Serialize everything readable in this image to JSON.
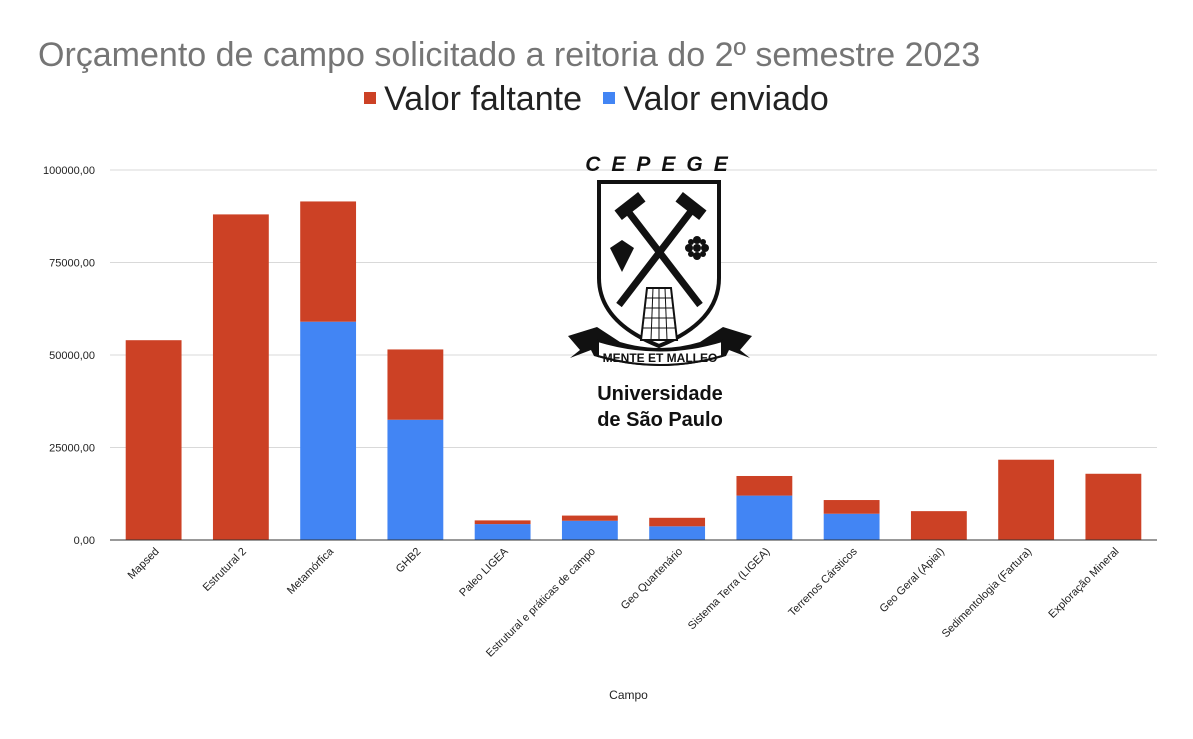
{
  "chart_data": {
    "type": "bar",
    "stacked": true,
    "title": "Orçamento de campo solicitado a reitoria do 2º semestre 2023",
    "xlabel": "Campo",
    "ylabel": "",
    "ylim": [
      0,
      100000
    ],
    "yticks": [
      "0,00",
      "25000,00",
      "50000,00",
      "75000,00",
      "100000,00"
    ],
    "grid": true,
    "legend_placement": "top-center",
    "categories": [
      "Mapsed",
      "Estrutural 2",
      "Metamórfica",
      "GHB2",
      "Paleo LIGEA",
      "Estrutural e práticas de campo",
      "Geo Quartenário",
      "Sistema Terra (LIGEA)",
      "Terrenos Cársticos",
      "Geo Geral (Apiaí)",
      "Sedimentologia (Fartura)",
      "Exploração Mineral"
    ],
    "series": [
      {
        "name": "Valor enviado",
        "color": "#4285f4",
        "values": [
          0,
          0,
          59000,
          32500,
          4300,
          5200,
          3700,
          12000,
          7100,
          0,
          0,
          0
        ]
      },
      {
        "name": "Valor faltante",
        "color": "#cc4125",
        "values": [
          54000,
          88000,
          32500,
          19000,
          1000,
          1400,
          2300,
          5300,
          3700,
          7800,
          21700,
          17900
        ]
      }
    ]
  },
  "logo": {
    "top_text": "CEPEGE",
    "motto": "MENTE ET MALLEO",
    "institution_line1": "Universidade",
    "institution_line2": "de São Paulo"
  }
}
